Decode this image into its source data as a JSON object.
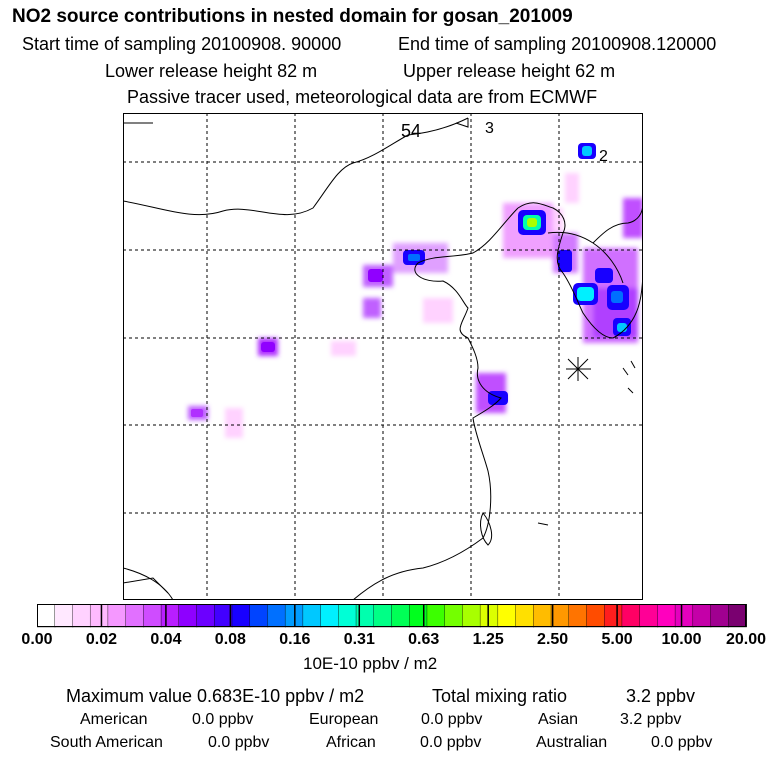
{
  "header": {
    "title": "NO2 source contributions in nested domain for gosan_201009",
    "start_time": "Start time of sampling 20100908. 90000",
    "end_time": "End time of sampling 20100908.120000",
    "lower_release": "Lower release height   82 m",
    "upper_release": "Upper release height   62 m",
    "tracer_note": "Passive tracer used, meteorological data are from ECMWF"
  },
  "map": {
    "labels": [
      "54",
      "3",
      "2"
    ],
    "colors": {
      "frame": "#000000",
      "coast": "#000000",
      "grid": "#000000"
    }
  },
  "colorbar": {
    "colors": [
      "#ffffff",
      "#ffe8ff",
      "#ffd2ff",
      "#ffbaff",
      "#f598ff",
      "#e170ff",
      "#cf4cff",
      "#b91eff",
      "#8e00ff",
      "#6c00ff",
      "#4200ff",
      "#1800ff",
      "#0044ff",
      "#0070ff",
      "#009cff",
      "#00c8ff",
      "#00f0ff",
      "#00ffd6",
      "#00ffae",
      "#00ff86",
      "#00ff56",
      "#00ff1e",
      "#3cff00",
      "#74ff00",
      "#a8ff00",
      "#dcff00",
      "#ffff00",
      "#ffe000",
      "#ffbc00",
      "#ff9800",
      "#ff7400",
      "#ff4c00",
      "#ff1e1e",
      "#ff0064",
      "#ff0096",
      "#ff00be",
      "#e400be",
      "#c400a8",
      "#a00090",
      "#7a0070"
    ],
    "ticks": [
      "0.00",
      "0.02",
      "0.04",
      "0.08",
      "0.16",
      "0.31",
      "0.63",
      "1.25",
      "2.50",
      "5.00",
      "10.00",
      "20.00"
    ],
    "unit": "10E-10 ppbv / m2"
  },
  "summary": {
    "max_value": "Maximum value  0.683E-10 ppbv / m2",
    "total_label": "Total mixing ratio",
    "total_value": "3.2 ppbv",
    "regions": [
      {
        "name": "American",
        "value": "0.0 ppbv"
      },
      {
        "name": "European",
        "value": "0.0 ppbv"
      },
      {
        "name": "Asian",
        "value": "3.2 ppbv"
      },
      {
        "name": "South American",
        "value": "0.0 ppbv"
      },
      {
        "name": "African",
        "value": "0.0 ppbv"
      },
      {
        "name": "Australian",
        "value": "0.0 ppbv"
      }
    ]
  }
}
